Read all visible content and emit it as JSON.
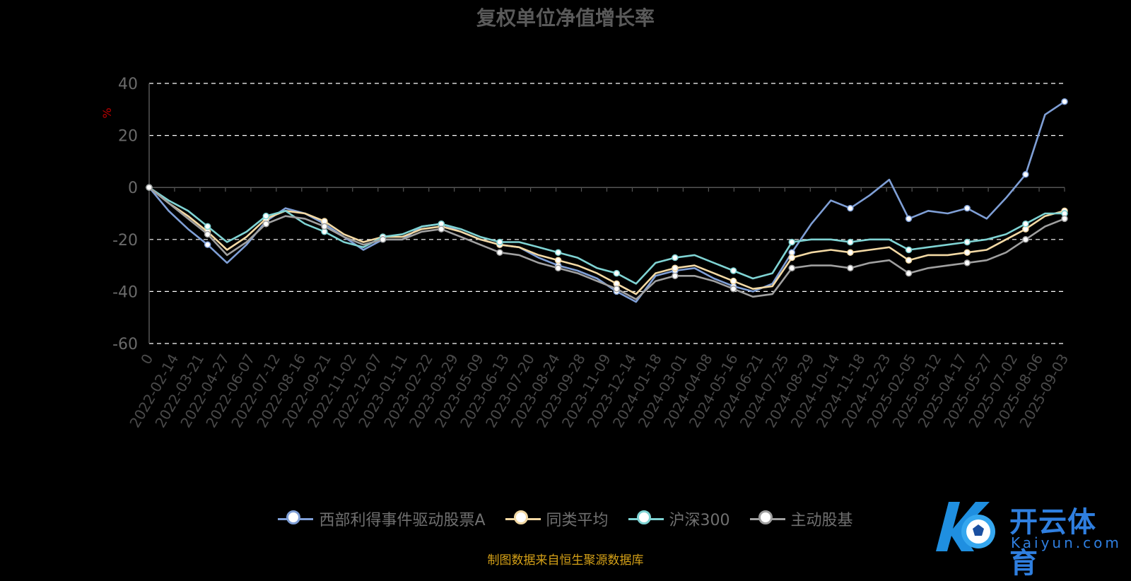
{
  "chart_data": {
    "type": "line",
    "title": "复权单位净值增长率",
    "ylabel": "%",
    "ylim": [
      -60,
      40
    ],
    "yticks": [
      40,
      20,
      0,
      -20,
      -40,
      -60
    ],
    "grid": true,
    "legend_position": "bottom",
    "x_ticks": [
      "0",
      "2022-02-14",
      "2022-03-21",
      "2022-04-27",
      "2022-06-07",
      "2022-07-12",
      "2022-08-16",
      "2022-09-21",
      "2022-11-02",
      "2022-12-07",
      "2023-01-11",
      "2023-02-22",
      "2023-03-29",
      "2023-05-09",
      "2023-06-13",
      "2023-07-20",
      "2023-08-24",
      "2023-09-28",
      "2023-11-09",
      "2023-12-14",
      "2024-01-18",
      "2024-03-01",
      "2024-04-08",
      "2024-05-16",
      "2024-06-21",
      "2024-07-25",
      "2024-08-29",
      "2024-10-14",
      "2024-11-18",
      "2024-12-23",
      "2025-02-05",
      "2025-03-12",
      "2025-04-17",
      "2025-05-27",
      "2025-07-02",
      "2025-08-06",
      "2025-09-03"
    ],
    "series": [
      {
        "name": "西部利得事件驱动股票A",
        "color": "#7f9fd6",
        "values": [
          0,
          -9,
          -16,
          -22,
          -29,
          -22,
          -13,
          -8,
          -10,
          -14,
          -19,
          -24,
          -20,
          -20,
          -15,
          -14,
          -17,
          -20,
          -22,
          -23,
          -27,
          -30,
          -32,
          -35,
          -40,
          -44,
          -34,
          -32,
          -31,
          -35,
          -38,
          -40,
          -37,
          -25,
          -14,
          -5,
          -8,
          -3,
          3,
          -12,
          -9,
          -10,
          -8,
          -12,
          -4,
          5,
          28,
          33
        ]
      },
      {
        "name": "同类平均",
        "color": "#f3d9a4",
        "values": [
          0,
          -6,
          -11,
          -17,
          -24,
          -19,
          -12,
          -9,
          -10,
          -13,
          -18,
          -21,
          -19,
          -19,
          -16,
          -15,
          -17,
          -20,
          -22,
          -23,
          -26,
          -28,
          -30,
          -33,
          -37,
          -41,
          -33,
          -31,
          -30,
          -33,
          -36,
          -39,
          -38,
          -27,
          -25,
          -24,
          -25,
          -24,
          -23,
          -28,
          -26,
          -26,
          -25,
          -24,
          -20,
          -16,
          -11,
          -9
        ]
      },
      {
        "name": "沪深300",
        "color": "#7fd3d3",
        "values": [
          0,
          -5,
          -9,
          -15,
          -21,
          -17,
          -11,
          -9,
          -14,
          -17,
          -21,
          -23,
          -19,
          -18,
          -15,
          -14,
          -16,
          -19,
          -21,
          -21,
          -23,
          -25,
          -27,
          -31,
          -33,
          -37,
          -29,
          -27,
          -26,
          -29,
          -32,
          -35,
          -33,
          -21,
          -20,
          -20,
          -21,
          -20,
          -20,
          -24,
          -23,
          -22,
          -21,
          -20,
          -18,
          -14,
          -10,
          -10
        ]
      },
      {
        "name": "主动股基",
        "color": "#a0a0a0",
        "values": [
          0,
          -6,
          -12,
          -18,
          -26,
          -21,
          -14,
          -11,
          -12,
          -15,
          -19,
          -22,
          -20,
          -20,
          -17,
          -16,
          -19,
          -22,
          -25,
          -26,
          -29,
          -31,
          -33,
          -36,
          -39,
          -43,
          -36,
          -34,
          -34,
          -36,
          -39,
          -42,
          -41,
          -31,
          -30,
          -30,
          -31,
          -29,
          -28,
          -33,
          -31,
          -30,
          -29,
          -28,
          -25,
          -20,
          -15,
          -12
        ]
      }
    ]
  },
  "legend": {
    "s1": "西部利得事件驱动股票A",
    "s2": "同类平均",
    "s3": "沪深300",
    "s4": "主动股基"
  },
  "source": "制图数据来自恒生聚源数据库",
  "logo": {
    "cn": "开云体育",
    "en": "Kaiyun.com"
  }
}
